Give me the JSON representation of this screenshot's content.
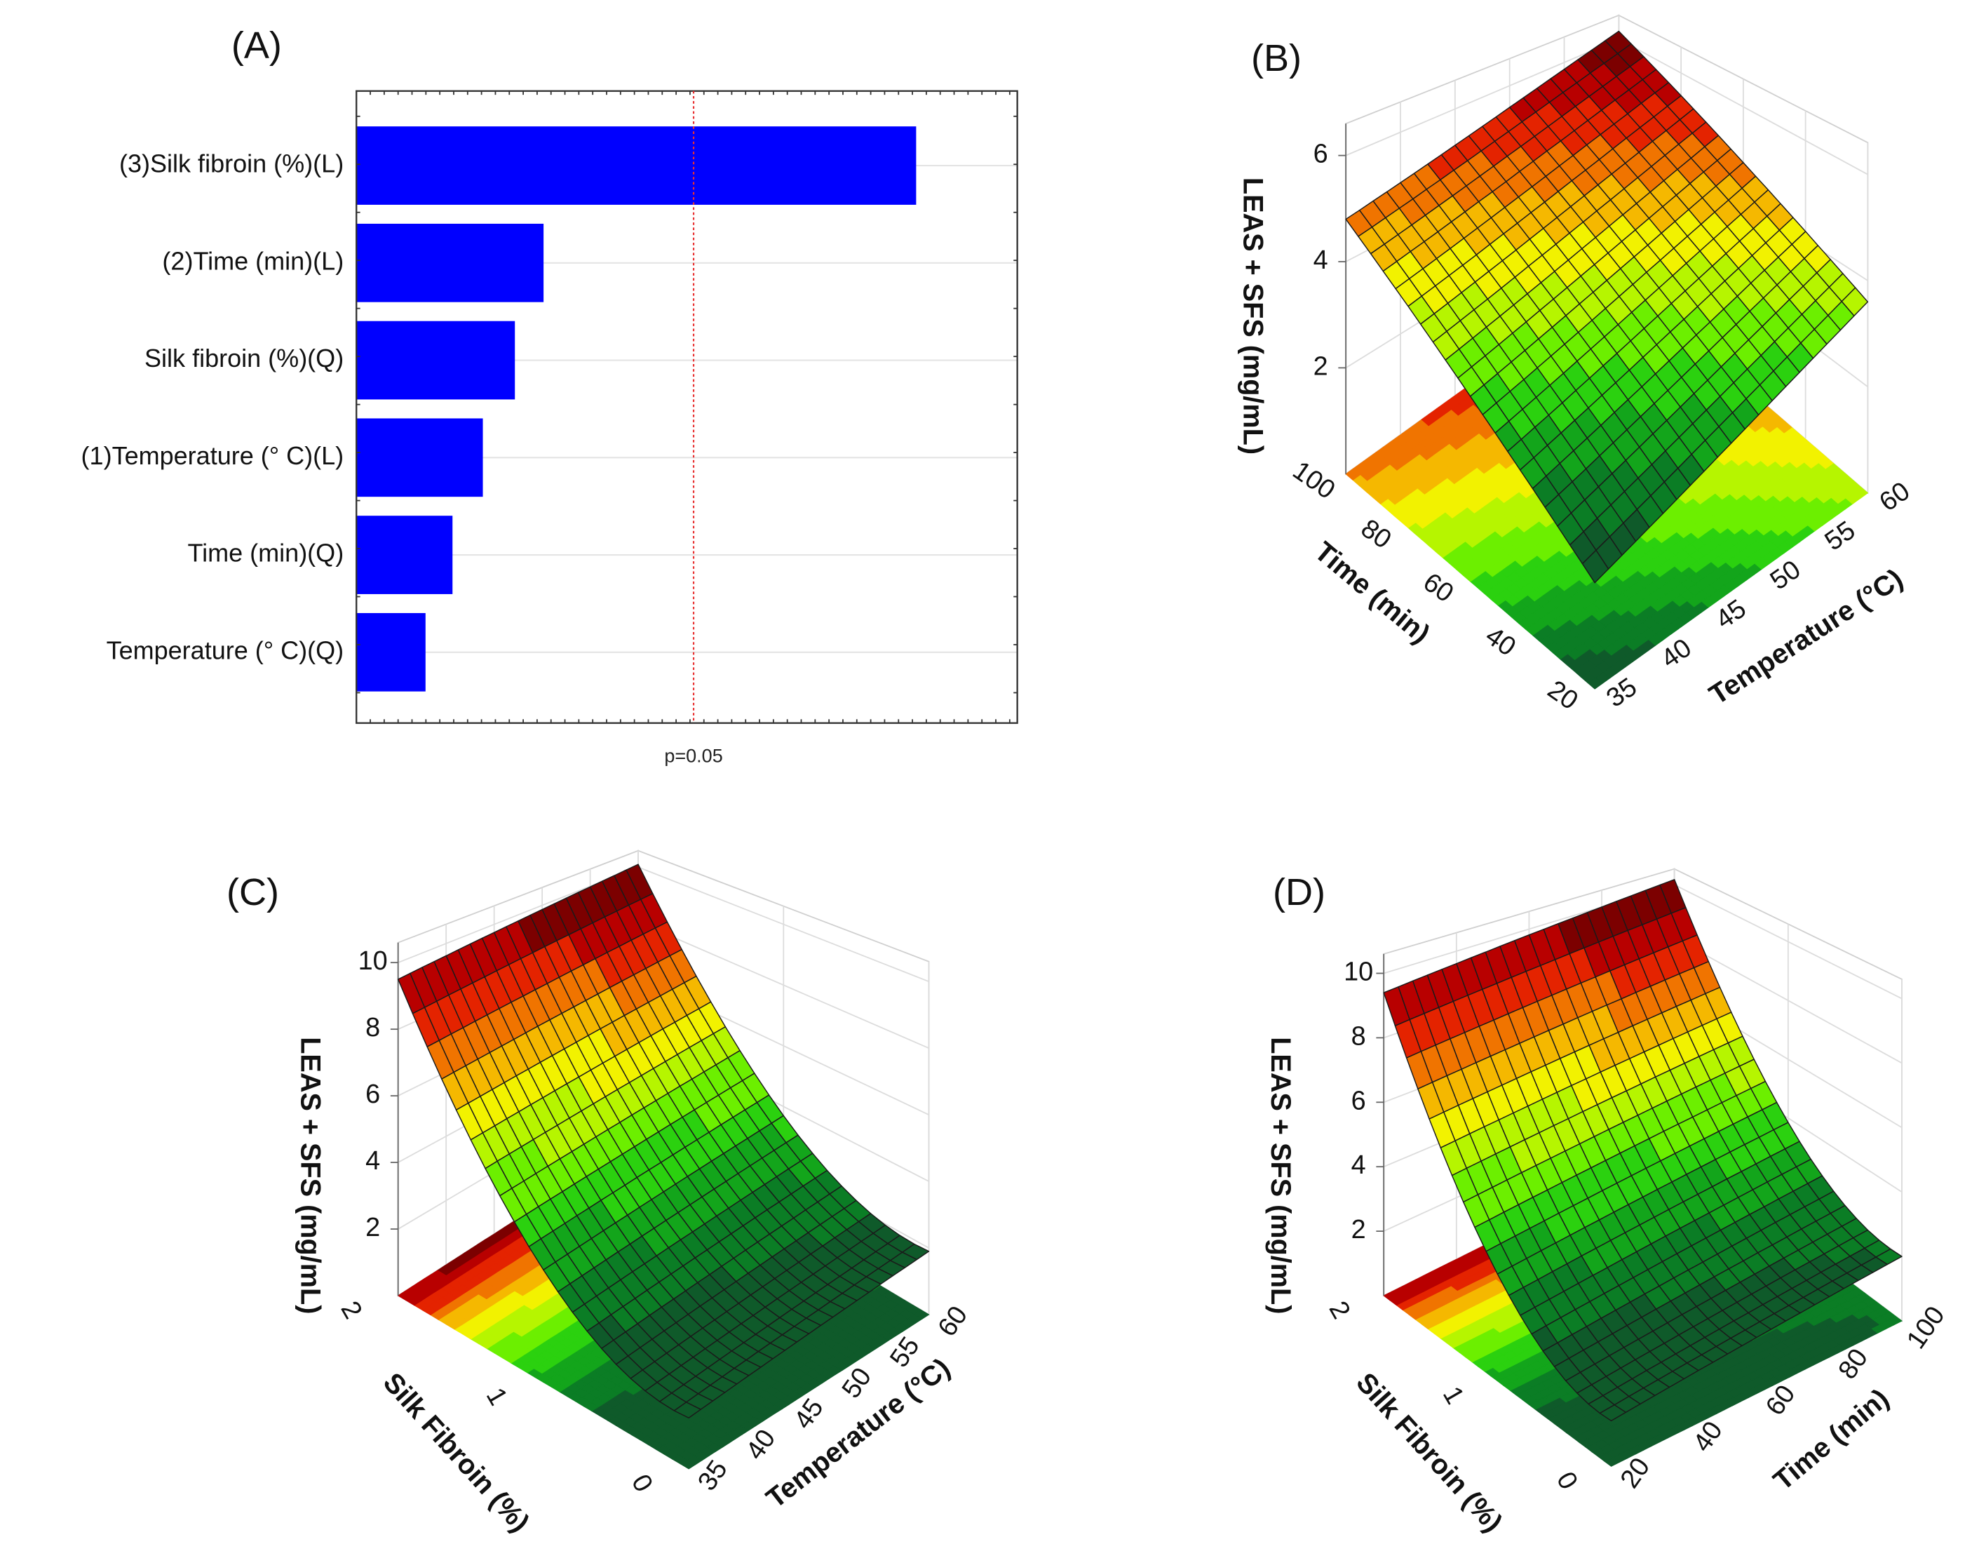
{
  "panels": {
    "a": "(A)",
    "b": "(B)",
    "c": "(C)",
    "d": "(D)"
  },
  "chart_data": [
    {
      "type": "bar",
      "orientation": "horizontal",
      "title": "(A)",
      "categories": [
        "(3)Silk fibroin (%)(L)",
        "(2)Time (min)(L)",
        "Silk fibroin (%)(Q)",
        "(1)Temperature (° C)(L)",
        "Time (min)(Q)",
        "Temperature (° C)(Q)"
      ],
      "values": [
        3.32,
        1.11,
        0.94,
        0.75,
        0.57,
        0.41
      ],
      "xlim": [
        0,
        3.92
      ],
      "reference_line": {
        "value": 2.0,
        "label": "p=0.05",
        "color": "#e83030"
      },
      "bar_color": "#0000ff",
      "grid": true
    },
    {
      "type": "surface",
      "title": "(B)",
      "xlabel": "Temperature (°C)",
      "x_range": [
        35,
        60
      ],
      "x_ticks": [
        35,
        40,
        45,
        50,
        55,
        60
      ],
      "ylabel": "Time (min)",
      "y_range": [
        20,
        100
      ],
      "y_ticks": [
        20,
        40,
        60,
        80,
        100
      ],
      "zlabel": "LEAS + SFS (mg/mL)",
      "z_ticks": [
        2,
        4,
        6
      ],
      "z_range": [
        0,
        6.6
      ],
      "model_coded": {
        "b0": 1.6,
        "bx": 1.5,
        "by": 2.8,
        "bxx": 0.5,
        "byy": 0.4,
        "bxy": -0.6
      }
    },
    {
      "type": "surface",
      "title": "(C)",
      "xlabel": "Temperature (°C)",
      "x_range": [
        35,
        60
      ],
      "x_ticks": [
        35,
        40,
        45,
        50,
        55,
        60
      ],
      "ylabel": "Silk Fibroin (%)",
      "y_range": [
        0,
        2
      ],
      "y_ticks": [
        0,
        1,
        2
      ],
      "zlabel": "LEAS + SFS (mg/mL)",
      "z_ticks": [
        2,
        4,
        6,
        8,
        10
      ],
      "z_range": [
        0,
        10.6
      ],
      "model_coded": {
        "b0": 1.3,
        "bx": 0.6,
        "by": -1.0,
        "bxx": 0.0,
        "byy": 9.2,
        "bxy": 0.0
      }
    },
    {
      "type": "surface",
      "title": "(D)",
      "xlabel": "Time (min)",
      "x_range": [
        20,
        100
      ],
      "x_ticks": [
        20,
        40,
        60,
        80,
        100
      ],
      "ylabel": "Silk Fibroin (%)",
      "y_range": [
        0,
        2
      ],
      "y_ticks": [
        0,
        1,
        2
      ],
      "zlabel": "LEAS + SFS (mg/mL)",
      "z_ticks": [
        2,
        4,
        6,
        8,
        10
      ],
      "z_range": [
        0,
        10.6
      ],
      "model_coded": {
        "b0": 1.2,
        "bx": 0.8,
        "by": -0.8,
        "bxx": 0.0,
        "byy": 9.0,
        "bxy": 0.0
      }
    }
  ],
  "colormap": [
    "#0f5a2a",
    "#0b7d25",
    "#13a51b",
    "#2bd10f",
    "#6cef00",
    "#b6f500",
    "#f2f200",
    "#f5b800",
    "#f07400",
    "#e42300",
    "#b80000",
    "#7c0000"
  ]
}
